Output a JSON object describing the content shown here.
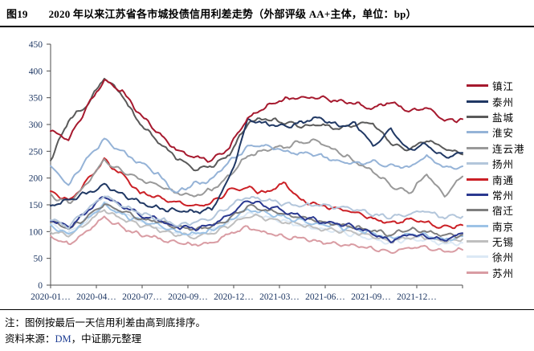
{
  "header": {
    "figure_no": "图19",
    "title": "2020 年以来江苏省各市城投债信用利差走势（外部评级 AA+主体，单位：bp）"
  },
  "notes": {
    "note": "注：图例按最后一天信用利差由高到底排序。",
    "source_prefix": "资料来源：",
    "source_dm": "DM",
    "source_suffix": "，中证鹏元整理"
  },
  "chart_data": {
    "type": "line",
    "title": "2020年以来江苏省各市城投债信用利差走势（外部评级AA+主体，单位：bp）",
    "xlabel": "",
    "ylabel": "",
    "unit": "bp",
    "ylim": [
      0,
      450
    ],
    "yticks": [
      0,
      50,
      100,
      150,
      200,
      250,
      300,
      350,
      400,
      450
    ],
    "x_tick_labels": [
      "2020-01…",
      "2020-04…",
      "2020-07…",
      "2020-09…",
      "2020-12…",
      "2021-03…",
      "2021-06…",
      "2021-09…",
      "2021-12…"
    ],
    "months": [
      "2020-01",
      "2020-02",
      "2020-03",
      "2020-04",
      "2020-05",
      "2020-06",
      "2020-07",
      "2020-08",
      "2020-09",
      "2020-10",
      "2020-11",
      "2020-12",
      "2021-01",
      "2021-02",
      "2021-03",
      "2021-04",
      "2021-05",
      "2021-06",
      "2021-07",
      "2021-08",
      "2021-09",
      "2021-10",
      "2021-11",
      "2021-12"
    ],
    "grid": false,
    "legend_position": "right",
    "axis_label_color": "#1F3864",
    "series": [
      {
        "name": "镇江",
        "key": "zhenjiang",
        "color": "#A6192E",
        "values": [
          288,
          272,
          330,
          383,
          362,
          318,
          285,
          252,
          240,
          233,
          258,
          312,
          332,
          346,
          350,
          352,
          345,
          340,
          330,
          342,
          325,
          331,
          306,
          310
        ]
      },
      {
        "name": "泰州",
        "key": "taizhou",
        "color": "#203864",
        "values": [
          148,
          160,
          172,
          188,
          170,
          154,
          144,
          139,
          136,
          142,
          200,
          308,
          302,
          296,
          305,
          312,
          298,
          300,
          262,
          290,
          252,
          262,
          238,
          247
        ]
      },
      {
        "name": "盐城",
        "key": "yancheng",
        "color": "#5A5A5A",
        "values": [
          235,
          308,
          335,
          388,
          355,
          300,
          268,
          238,
          217,
          222,
          245,
          302,
          312,
          303,
          297,
          301,
          293,
          297,
          302,
          265,
          252,
          272,
          254,
          244
        ]
      },
      {
        "name": "淮安",
        "key": "huaian",
        "color": "#95B3D7",
        "values": [
          222,
          186,
          235,
          272,
          248,
          228,
          208,
          172,
          188,
          198,
          232,
          258,
          262,
          250,
          246,
          242,
          232,
          228,
          230,
          222,
          220,
          242,
          218,
          222
        ]
      },
      {
        "name": "连云港",
        "key": "lianyungang",
        "color": "#999999",
        "values": [
          168,
          152,
          190,
          232,
          212,
          198,
          188,
          172,
          168,
          178,
          205,
          242,
          252,
          258,
          268,
          270,
          248,
          232,
          212,
          188,
          172,
          208,
          168,
          203
        ]
      },
      {
        "name": "扬州",
        "key": "yangzhou",
        "color": "#B3C6DB",
        "values": [
          125,
          108,
          140,
          168,
          148,
          135,
          125,
          112,
          118,
          125,
          148,
          165,
          158,
          152,
          148,
          150,
          145,
          142,
          132,
          128,
          134,
          138,
          126,
          128
        ]
      },
      {
        "name": "南通",
        "key": "nantong",
        "color": "#CB2026",
        "values": [
          175,
          158,
          192,
          235,
          205,
          172,
          162,
          155,
          148,
          152,
          178,
          182,
          172,
          190,
          158,
          150,
          143,
          136,
          124,
          116,
          122,
          117,
          108,
          112
        ]
      },
      {
        "name": "常州",
        "key": "changzhou",
        "color": "#2B3990",
        "values": [
          122,
          108,
          135,
          168,
          148,
          132,
          122,
          110,
          106,
          112,
          132,
          158,
          148,
          140,
          128,
          120,
          115,
          108,
          96,
          82,
          95,
          92,
          85,
          97
        ]
      },
      {
        "name": "宿迁",
        "key": "suqian",
        "color": "#7F7F7F",
        "values": [
          118,
          104,
          128,
          152,
          138,
          125,
          118,
          108,
          104,
          110,
          126,
          148,
          140,
          132,
          125,
          118,
          114,
          110,
          102,
          95,
          105,
          100,
          92,
          94
        ]
      },
      {
        "name": "南京",
        "key": "nanjing",
        "color": "#9DC3E6",
        "values": [
          108,
          96,
          122,
          150,
          132,
          120,
          112,
          100,
          96,
          102,
          122,
          142,
          134,
          128,
          120,
          114,
          110,
          104,
          96,
          88,
          96,
          92,
          86,
          91
        ]
      },
      {
        "name": "无锡",
        "key": "wuxi",
        "color": "#BFBFBF",
        "values": [
          102,
          90,
          115,
          140,
          125,
          112,
          104,
          94,
          90,
          96,
          112,
          130,
          124,
          118,
          112,
          106,
          102,
          98,
          90,
          82,
          90,
          88,
          82,
          86
        ]
      },
      {
        "name": "徐州",
        "key": "xuzhou",
        "color": "#DCE9F5",
        "values": [
          112,
          98,
          120,
          155,
          135,
          118,
          108,
          98,
          94,
          100,
          118,
          135,
          126,
          120,
          112,
          105,
          100,
          95,
          86,
          78,
          86,
          84,
          76,
          79
        ]
      },
      {
        "name": "苏州",
        "key": "suzhou",
        "color": "#D99CA3",
        "values": [
          92,
          75,
          100,
          126,
          108,
          95,
          88,
          80,
          74,
          80,
          95,
          108,
          98,
          92,
          88,
          82,
          78,
          74,
          68,
          62,
          70,
          72,
          63,
          66
        ]
      }
    ]
  }
}
